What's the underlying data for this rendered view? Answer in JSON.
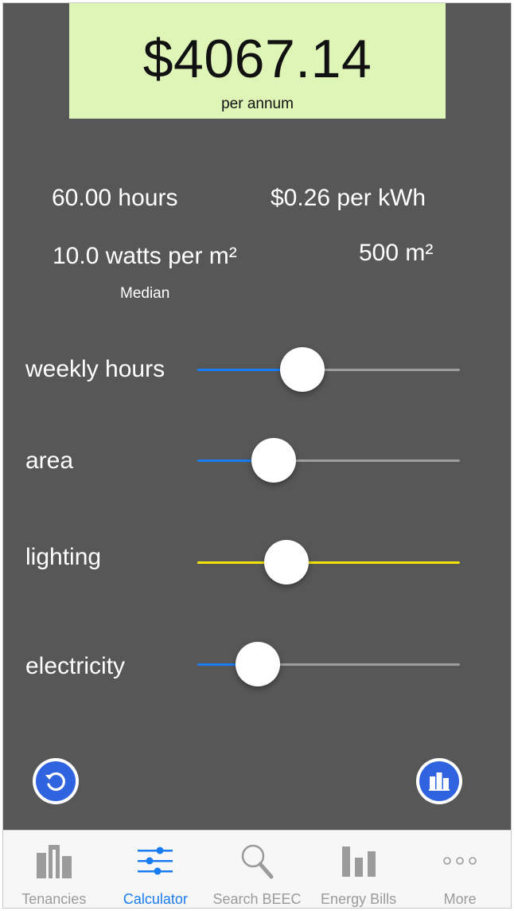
{
  "cost": {
    "amount": "$4067.14",
    "period": "per annum"
  },
  "stats": {
    "hours": "60.00 hours",
    "rate": "$0.26 per kWh",
    "lighting": "10.0 watts per m²",
    "lighting_note": "Median",
    "area": "500 m²"
  },
  "sliders": [
    {
      "label": "weekly hours",
      "value": 0.4,
      "color": "#1a7cf2"
    },
    {
      "label": "area",
      "value": 0.29,
      "color": "#1a7cf2"
    },
    {
      "label": "lighting",
      "value": 0.34,
      "color": "#f2e20a"
    },
    {
      "label": "electricity",
      "value": 0.23,
      "color": "#1a7cf2"
    }
  ],
  "colors": {
    "track": "#9e9e9e",
    "accent": "#1a7cf2",
    "background": "#575757",
    "highlight": "#dff5b8"
  },
  "actions": {
    "reset_icon": "refresh-icon",
    "building_icon": "building-icon"
  },
  "tabs": [
    {
      "label": "Tenancies",
      "icon": "building-icon",
      "active": false
    },
    {
      "label": "Calculator",
      "icon": "sliders-icon",
      "active": true
    },
    {
      "label": "Search BEEC",
      "icon": "search-icon",
      "active": false
    },
    {
      "label": "Energy Bills",
      "icon": "bar-chart-icon",
      "active": false
    },
    {
      "label": "More",
      "icon": "more-icon",
      "active": false
    }
  ]
}
